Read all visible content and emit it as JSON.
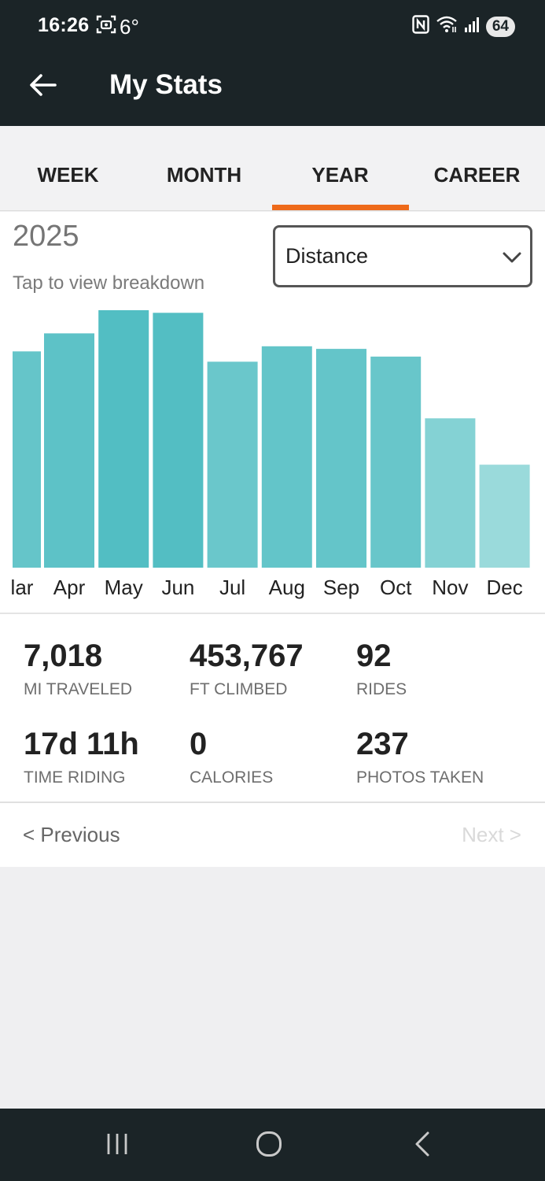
{
  "status_bar": {
    "time": "16:26",
    "temperature": "6°",
    "battery": "64",
    "icons": [
      "screenshot-icon",
      "nfc-icon",
      "wifi-icon",
      "signal-icon",
      "battery-icon"
    ]
  },
  "app_bar": {
    "title": "My Stats",
    "back_icon": "arrow-left-icon"
  },
  "tabs": [
    {
      "label": "WEEK",
      "selected": false
    },
    {
      "label": "MONTH",
      "selected": false
    },
    {
      "label": "YEAR",
      "selected": true
    },
    {
      "label": "CAREER",
      "selected": false
    }
  ],
  "colors": {
    "accent": "#ee6a1a",
    "bar_dark": "#52bec3",
    "bar_light": "#9adadb",
    "header": "#1b2427"
  },
  "chart_header": {
    "year": "2025",
    "hint": "Tap to view breakdown",
    "metric_selected": "Distance"
  },
  "chart_data": {
    "type": "bar",
    "categories": [
      "Mar",
      "Apr",
      "May",
      "Jun",
      "Jul",
      "Aug",
      "Sep",
      "Oct",
      "Nov",
      "Dec"
    ],
    "tick_labels": [
      "lar",
      "Apr",
      "May",
      "Jun",
      "Jul",
      "Aug",
      "Sep",
      "Oct",
      "Nov",
      "Dec"
    ],
    "values": [
      84,
      91,
      100,
      99,
      80,
      86,
      85,
      82,
      58,
      40
    ],
    "units": "relative distance (max = 100)",
    "ylim": [
      0,
      100
    ],
    "grid": false,
    "legend": "none",
    "title": "",
    "xlabel": "",
    "ylabel": ""
  },
  "stats": [
    {
      "value": "7,018",
      "label": "MI TRAVELED"
    },
    {
      "value": "453,767",
      "label": "FT CLIMBED"
    },
    {
      "value": "92",
      "label": "RIDES"
    },
    {
      "value": "17d 11h",
      "label": "TIME RIDING"
    },
    {
      "value": "0",
      "label": "CALORIES"
    },
    {
      "value": "237",
      "label": "PHOTOS TAKEN"
    }
  ],
  "pagination": {
    "previous": "< Previous",
    "next": "Next >",
    "next_enabled": false
  },
  "nav_bar": {
    "buttons": [
      "recent-apps-icon",
      "home-icon",
      "back-nav-icon"
    ]
  }
}
